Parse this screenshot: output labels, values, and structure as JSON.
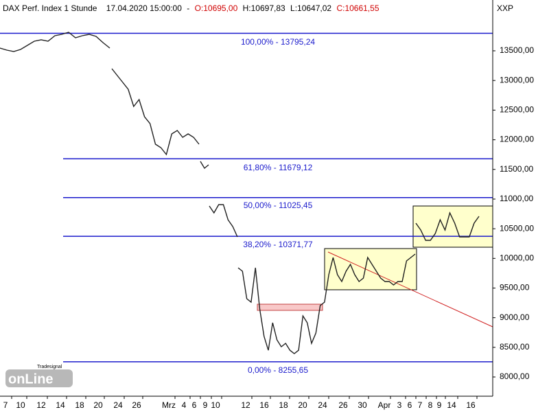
{
  "chart_data": {
    "type": "line",
    "title": "DAX Perf. Index 1 Stunde",
    "datetime": "17.04.2020 15:00:00",
    "separator": "-",
    "ohlc": [
      "O:10695,00",
      "H:10697,83",
      "L:10647,02",
      "C:10661,55"
    ],
    "symbol": "XXP",
    "logo": {
      "brand": "Tradesignal",
      "name": "onLine"
    },
    "ylim": [
      7699,
      14357
    ],
    "yticks": [
      {
        "value": 8000,
        "label": "8000,00"
      },
      {
        "value": 8500,
        "label": "8500,00"
      },
      {
        "value": 9000,
        "label": "9000,00"
      },
      {
        "value": 9500,
        "label": "9500,00"
      },
      {
        "value": 10000,
        "label": "10000,00"
      },
      {
        "value": 10500,
        "label": "10500,00"
      },
      {
        "value": 11000,
        "label": "11000,00"
      },
      {
        "value": 11500,
        "label": "11500,00"
      },
      {
        "value": 12000,
        "label": "12000,00"
      },
      {
        "value": 12500,
        "label": "12500,00"
      },
      {
        "value": 13000,
        "label": "13000,00"
      },
      {
        "value": 13500,
        "label": "13500,00"
      }
    ],
    "xtick_labels": [
      "7",
      "10",
      "12",
      "14",
      "18",
      "20",
      "24",
      "26",
      "Mrz",
      "4",
      "6",
      "9",
      "10",
      "12",
      "16",
      "18",
      "20",
      "24",
      "26",
      "30",
      "Apr",
      "3",
      "6",
      "7",
      "8",
      "9",
      "14",
      "16"
    ],
    "fib_levels": [
      13795.24,
      11679.12,
      11025.45,
      10371.77,
      8255.65
    ],
    "fib_labels": [
      "100,00% - 13795,24",
      "61,80% - 11679,12",
      "50,00% - 11025,45",
      "38,20% - 10371,77",
      "0,00% - 8255,65"
    ],
    "fib_color": "#1a1acc",
    "series": [
      {
        "color": "#202020",
        "values": [
          13546,
          13512,
          13488,
          13523,
          13593,
          13662,
          13685,
          13662,
          13755,
          13778,
          13813,
          13720,
          13755,
          13778,
          13743,
          13639,
          13546,
          null,
          13199,
          13083,
          12967,
          12852,
          12562,
          12678,
          12388,
          12273,
          11925,
          11867,
          11752,
          12099,
          12157,
          12041,
          12099,
          12041,
          11925,
          null,
          11636,
          11520,
          11578,
          null,
          10883,
          10767,
          10906,
          10906,
          10651,
          10536,
          10362,
          null,
          9841,
          9783,
          9320,
          9262,
          9841,
          9146,
          8683,
          8451,
          8915,
          8625,
          8509,
          8567,
          8451,
          8394,
          8451,
          9031,
          8915,
          8567,
          8741,
          9204,
          9262,
          9725,
          10015,
          9725,
          9609,
          9783,
          9899,
          9725,
          9609,
          9667,
          10015,
          9899,
          9783,
          9667,
          9609,
          9609,
          9552,
          9609,
          9609,
          9957,
          10015,
          10073,
          null,
          10594,
          10478,
          10304,
          10304,
          10420,
          10651,
          10478,
          10767,
          10594,
          10362,
          10362,
          10362,
          10594,
          10709
        ]
      }
    ]
  }
}
